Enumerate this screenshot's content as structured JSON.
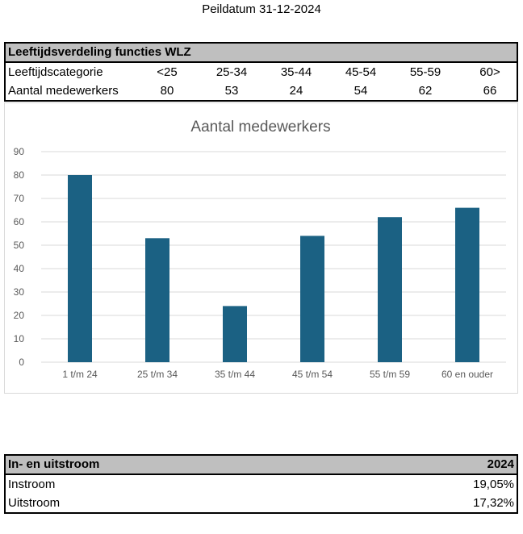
{
  "peildatum": "Peildatum 31-12-2024",
  "age_table": {
    "title": "Leeftijdsverdeling functies WLZ",
    "row1_label": "Leeftijdscategorie",
    "row2_label": "Aantal medewerkers",
    "categories": [
      "<25",
      "25-34",
      "35-44",
      "45-54",
      "55-59",
      "60>"
    ],
    "counts": [
      "80",
      "53",
      "24",
      "54",
      "62",
      "66"
    ]
  },
  "flow_table": {
    "title": "In- en uitstroom",
    "year": "2024",
    "rows": [
      {
        "label": "Instroom",
        "value": "19,05%"
      },
      {
        "label": "Uitstroom",
        "value": "17,32%"
      }
    ]
  },
  "chart_data": {
    "type": "bar",
    "title": "Aantal medewerkers",
    "categories": [
      "1 t/m 24",
      "25 t/m 34",
      "35 t/m 44",
      "45 t/m 54",
      "55 t/m 59",
      "60 en ouder"
    ],
    "values": [
      80,
      53,
      24,
      54,
      62,
      66
    ],
    "ylim": [
      0,
      90
    ],
    "yticks": [
      0,
      10,
      20,
      30,
      40,
      50,
      60,
      70,
      80,
      90
    ],
    "grid": true,
    "bar_color": "#1b6183",
    "xlabel": "",
    "ylabel": ""
  }
}
